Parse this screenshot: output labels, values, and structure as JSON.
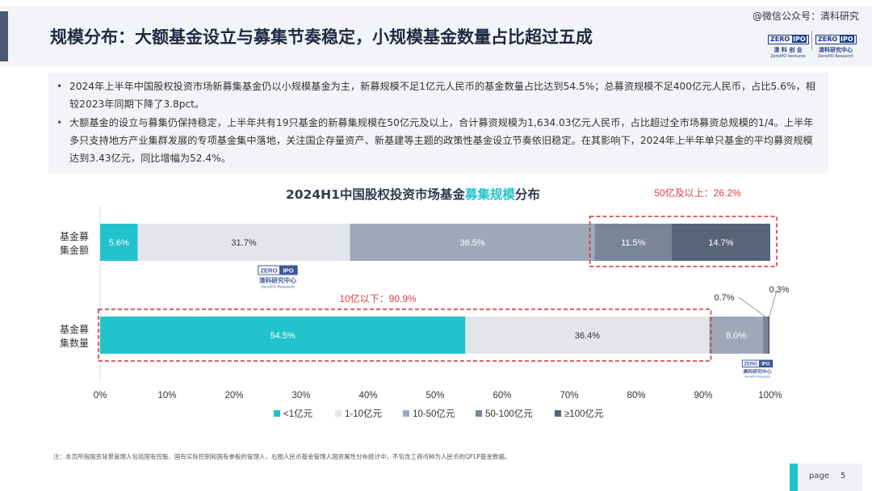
{
  "header": {
    "title": "规模分布：大额基金设立与募集节奏稳定，小规模基金数量占比超过五成",
    "watermark": "@微信公众号：清科研究",
    "logo_left": {
      "brand_a": "ZERO",
      "brand_b": "IPO",
      "cn": "清 科 创 业",
      "en": "ZeroIPO Ventures"
    },
    "logo_right": {
      "brand_a": "ZERO",
      "brand_b": "IPO",
      "cn": "清科研究中心",
      "en": "ZeroIPO Research"
    }
  },
  "bullets": [
    "2024年上半年中国股权投资市场新募集基金仍以小规模基金为主，新募规模不足1亿元人民币的基金数量占比达到54.5%；总募资规模不足400亿元人民币，占比5.6%，相较2023年同期下降了3.8pct。",
    "大额基金的设立与募集仍保持稳定，上半年共有19只基金的新募集规模在50亿元及以上，合计募资规模为1,634.03亿元人民币，占比超过全市场募资总规模的1/4。上半年多只支持地方产业集群发展的专项基金集中落地，关注国企存量资产、新基建等主题的政策性基金设立节奏依旧稳定。在其影响下，2024年上半年单只基金的平均募资规模达到3.43亿元，同比增幅为52.4%。"
  ],
  "chart_title": {
    "prefix": "2024H1中国股权投资市场基金",
    "highlight": "募集规模",
    "suffix": "分布"
  },
  "chart_data": {
    "type": "bar",
    "orientation": "horizontal",
    "stacked": true,
    "title": "2024H1中国股权投资市场基金募集规模分布",
    "categories": [
      "基金募集金额",
      "基金募集数量"
    ],
    "category_labels": [
      [
        "基金募",
        "集金额"
      ],
      [
        "基金募",
        "集数量"
      ]
    ],
    "series": [
      {
        "name": "<1亿元",
        "color": "#22c3cc",
        "values": [
          5.6,
          54.5
        ],
        "labels": [
          "5.6%",
          "54.5%"
        ]
      },
      {
        "name": "1-10亿元",
        "color": "#e3e5ea",
        "values": [
          31.7,
          36.4
        ],
        "labels": [
          "31.7%",
          "36.4%"
        ]
      },
      {
        "name": "10-50亿元",
        "color": "#9fa8b8",
        "values": [
          36.5,
          8.0
        ],
        "labels": [
          "36.5%",
          "8.0%"
        ]
      },
      {
        "name": "50-100亿元",
        "color": "#7b8598",
        "values": [
          11.5,
          0.7
        ],
        "labels": [
          "11.5%",
          "0.7%"
        ]
      },
      {
        "name": "≥100亿元",
        "color": "#5a6478",
        "values": [
          14.7,
          0.3
        ],
        "labels": [
          "14.7%",
          "0.3%"
        ]
      }
    ],
    "xlim": [
      0,
      100
    ],
    "xticks": [
      "0%",
      "10%",
      "20%",
      "30%",
      "40%",
      "50%",
      "60%",
      "70%",
      "80%",
      "90%",
      "100%"
    ],
    "legend_position": "bottom",
    "annotations": [
      {
        "text": "50亿及以上：26.2%",
        "color": "#e23b3b"
      },
      {
        "text": "10亿以下：90.9%",
        "color": "#e23b3b"
      }
    ],
    "grid": false
  },
  "footnote": "注：本页所指国资背景管理人包括国有控股、国有实际控制和国有参股的管理人，右图人民币基金管理人国资属性分布统计中，不包含工商币种为人民币的QFLP基金数据。",
  "page": {
    "label": "page",
    "number": "5"
  }
}
